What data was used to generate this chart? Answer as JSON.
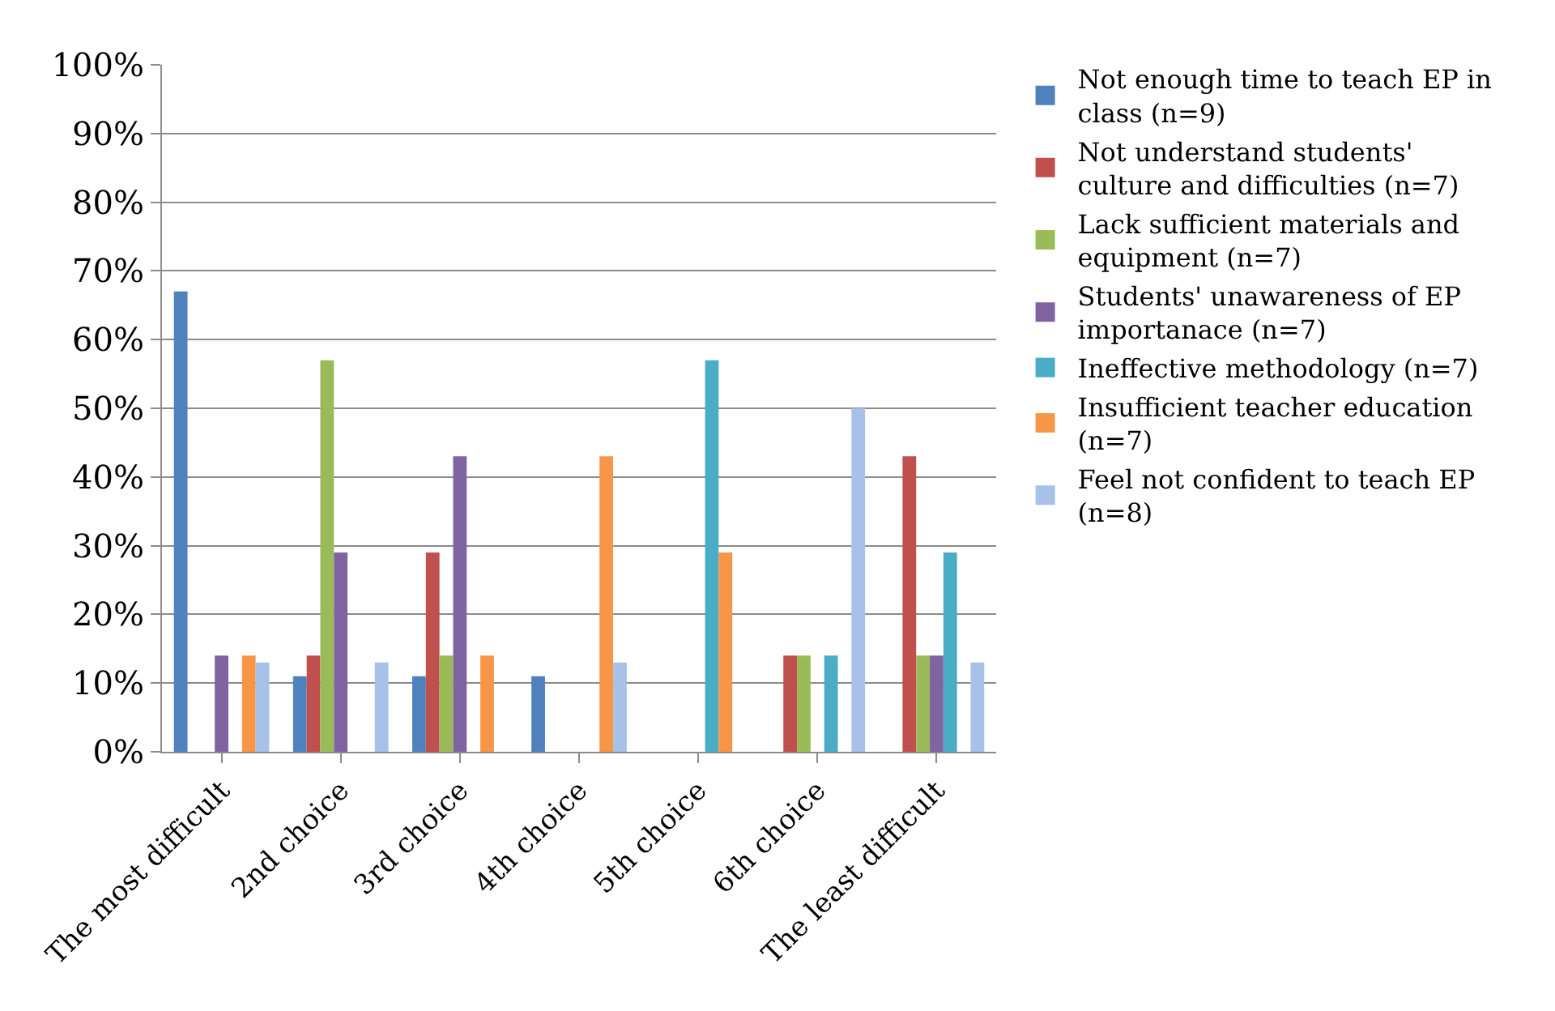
{
  "chart_data": {
    "type": "bar",
    "categories": [
      "The most difficult",
      "2nd choice",
      "3rd choice",
      "4th choice",
      "5th choice",
      "6th choice",
      "The least difficult"
    ],
    "series": [
      {
        "name": "Not enough time to teach EP in class (n=9)",
        "color": "#4f81bd",
        "values": [
          67,
          11,
          11,
          11,
          0,
          0,
          0
        ]
      },
      {
        "name": "Not understand students' culture and difficulties (n=7)",
        "color": "#c0504d",
        "values": [
          0,
          14,
          29,
          0,
          0,
          14,
          43
        ]
      },
      {
        "name": "Lack sufficient materials and equipment (n=7)",
        "color": "#9bbb59",
        "values": [
          0,
          57,
          14,
          0,
          0,
          14,
          14
        ]
      },
      {
        "name": "Students' unawareness of EP importanace (n=7)",
        "color": "#8064a2",
        "values": [
          14,
          29,
          43,
          0,
          0,
          0,
          14
        ]
      },
      {
        "name": "Ineffective methodology (n=7)",
        "color": "#4bacc6",
        "values": [
          0,
          0,
          0,
          0,
          57,
          14,
          29
        ]
      },
      {
        "name": "Insufficient teacher education (n=7)",
        "color": "#f79646",
        "values": [
          14,
          0,
          14,
          43,
          29,
          0,
          0
        ]
      },
      {
        "name": "Feel not confident to teach EP (n=8)",
        "color": "#a7c1e8",
        "values": [
          13,
          13,
          0,
          13,
          0,
          50,
          13
        ]
      }
    ],
    "ylim": [
      0,
      100
    ],
    "yticks": [
      {
        "value": 0,
        "label": "0%"
      },
      {
        "value": 10,
        "label": "10%"
      },
      {
        "value": 20,
        "label": "20%"
      },
      {
        "value": 30,
        "label": "30%"
      },
      {
        "value": 40,
        "label": "40%"
      },
      {
        "value": 50,
        "label": "50%"
      },
      {
        "value": 60,
        "label": "60%"
      },
      {
        "value": 70,
        "label": "70%"
      },
      {
        "value": 80,
        "label": "80%"
      },
      {
        "value": 90,
        "label": "90%"
      },
      {
        "value": 100,
        "label": "100%"
      }
    ],
    "grid": "y",
    "legend": "right"
  }
}
